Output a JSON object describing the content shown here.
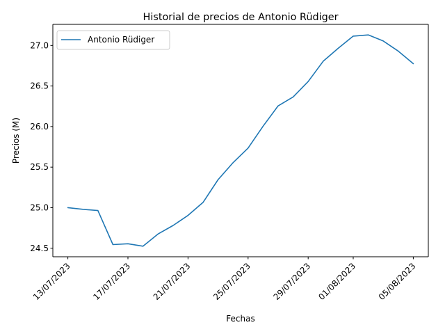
{
  "chart_data": {
    "type": "line",
    "title": "Historial de precios de Antonio Rüdiger",
    "xlabel": "Fechas",
    "ylabel": "Precios (M)",
    "x": [
      "2023-07-13",
      "2023-07-14",
      "2023-07-15",
      "2023-07-16",
      "2023-07-17",
      "2023-07-18",
      "2023-07-19",
      "2023-07-20",
      "2023-07-21",
      "2023-07-22",
      "2023-07-23",
      "2023-07-24",
      "2023-07-25",
      "2023-07-26",
      "2023-07-27",
      "2023-07-28",
      "2023-07-29",
      "2023-07-30",
      "2023-07-31",
      "2023-08-01",
      "2023-08-02",
      "2023-08-03",
      "2023-08-04",
      "2023-08-05"
    ],
    "series": [
      {
        "name": "Antonio Rüdiger",
        "color": "#1f77b4",
        "values": [
          25.0,
          24.98,
          24.965,
          24.545,
          24.555,
          24.525,
          24.675,
          24.78,
          24.905,
          25.065,
          25.345,
          25.555,
          25.735,
          26.005,
          26.255,
          26.365,
          26.555,
          26.805,
          26.965,
          27.115,
          27.13,
          27.055,
          26.93,
          26.775
        ]
      }
    ],
    "xticks": [
      "13/07/2023",
      "17/07/2023",
      "21/07/2023",
      "25/07/2023",
      "29/07/2023",
      "01/08/2023",
      "05/08/2023"
    ],
    "xtick_dates": [
      "2023-07-13",
      "2023-07-17",
      "2023-07-21",
      "2023-07-25",
      "2023-07-29",
      "2023-08-01",
      "2023-08-05"
    ],
    "yticks": [
      24.5,
      25.0,
      25.5,
      26.0,
      26.5,
      27.0
    ],
    "ytick_labels": [
      "24.5",
      "25.0",
      "25.5",
      "26.0",
      "26.5",
      "27.0"
    ],
    "xlim": [
      "2023-07-12",
      "2023-08-06"
    ],
    "ylim": [
      24.395,
      27.26
    ],
    "grid": false,
    "legend": "upper-left"
  }
}
